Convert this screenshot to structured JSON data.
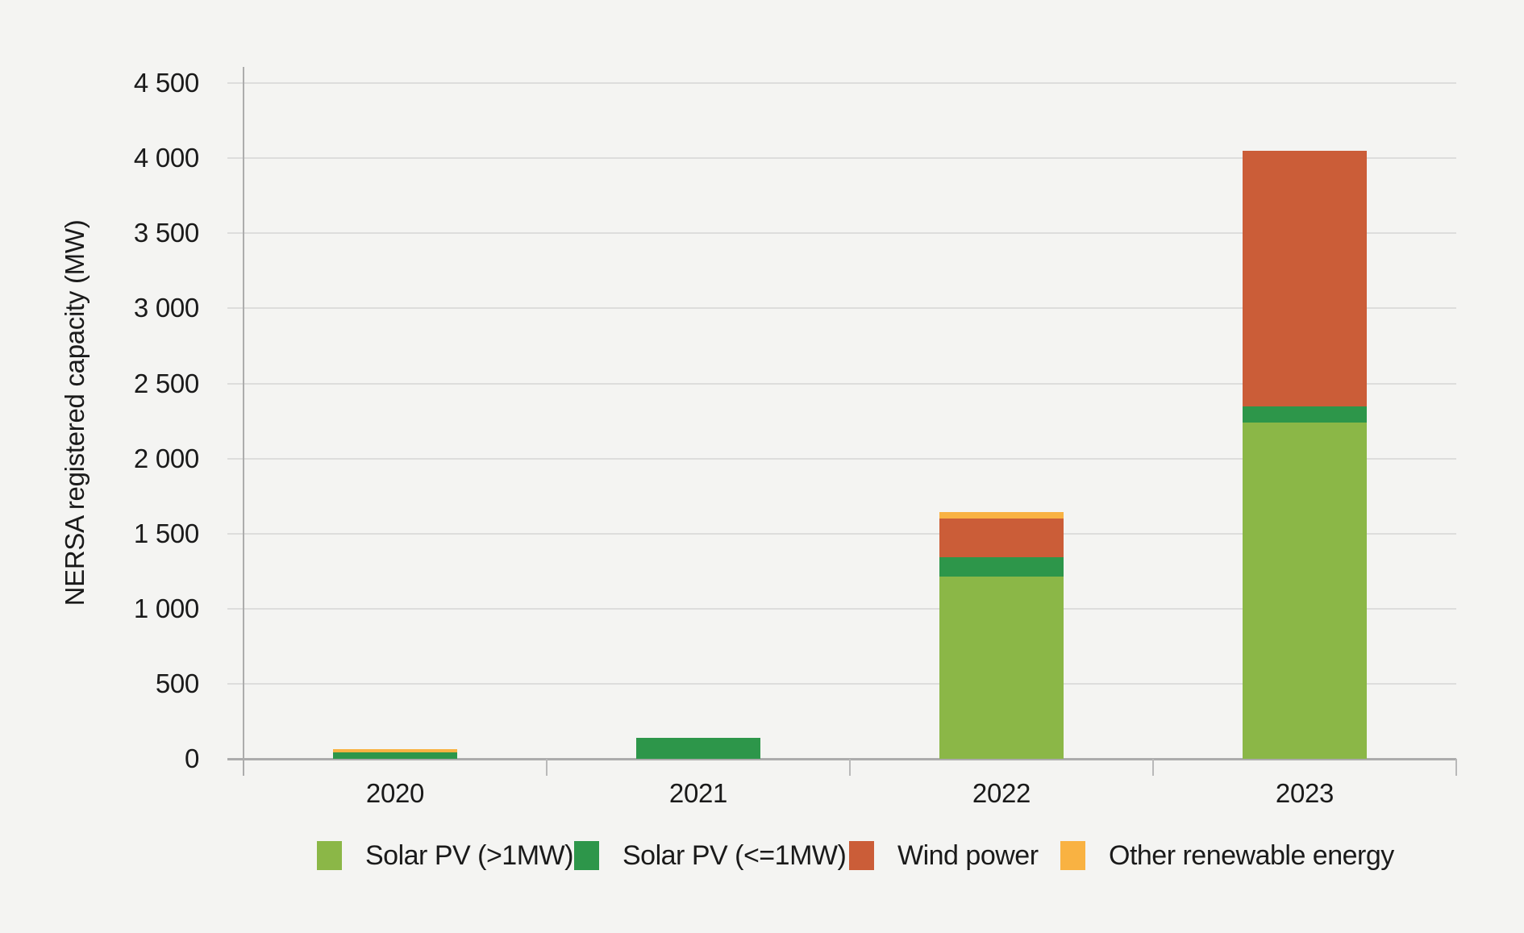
{
  "colors": {
    "background": "#F4F4F2",
    "gridline": "#DDDDDC",
    "axis_line": "#ACACAC",
    "text": "#1A1A1A"
  },
  "chart_data": {
    "type": "bar",
    "stacked": true,
    "categories": [
      "2020",
      "2021",
      "2022",
      "2023"
    ],
    "series": [
      {
        "name": "Solar PV (>1MW)",
        "color": "#8BB747",
        "values": [
          0,
          0,
          1215,
          2240
        ]
      },
      {
        "name": "Solar PV (<=1MW)",
        "color": "#2D964A",
        "values": [
          45,
          140,
          130,
          105
        ]
      },
      {
        "name": "Wind power",
        "color": "#CB5D38",
        "values": [
          0,
          0,
          255,
          1705
        ]
      },
      {
        "name": "Other renewable energy",
        "color": "#F9B242",
        "values": [
          22,
          0,
          45,
          0
        ]
      }
    ],
    "totals": [
      67,
      140,
      1645,
      4050
    ],
    "xlabel": "",
    "ylabel": "NERSA registered capacity (MW)",
    "ylim": [
      0,
      4500
    ],
    "y_tick_step": 500,
    "y_tick_labels": [
      "0",
      "500",
      "1 000",
      "1 500",
      "2 000",
      "2 500",
      "3 000",
      "3 500",
      "4 000",
      "4 500"
    ],
    "grid": "horizontal",
    "legend_position": "bottom"
  }
}
